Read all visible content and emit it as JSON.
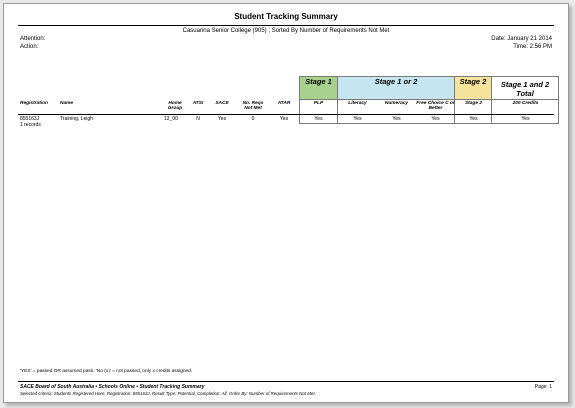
{
  "report": {
    "title": "Student Tracking Summary",
    "subtitle": "Casuarina Senior College (905) ; Sorted By Number of Requirements Not Met",
    "attention_label": "Attention:",
    "action_label": "Action:",
    "date": "Date: January 21 2014",
    "time": "Time: 2:56 PM"
  },
  "groups": {
    "stage1": "Stage 1",
    "stage1or2": "Stage 1 or 2",
    "stage2": "Stage 2",
    "total": "Stage 1 and 2 Total"
  },
  "group_colors": {
    "stage1": "#a9d18e",
    "stage1or2": "#c5e6f0",
    "stage2": "#f6e39b"
  },
  "columns": {
    "registration": "Registration",
    "name": "Name",
    "home_group": "Home Group",
    "atsi": "ATSI",
    "sace": "SACE",
    "no_reqs": "No. Reqs Not Met",
    "atar": "ATAR",
    "plp": "PLP",
    "literacy": "Literacy",
    "numeracy": "Numeracy",
    "free_choice": "Free Choice C or Better",
    "stage2": "Stage 2",
    "credits": "200 Credits"
  },
  "rows": [
    {
      "registration": "855163J",
      "name": "Training, Leigh",
      "home_group": "12_00",
      "atsi": "N",
      "sace": "Yes",
      "no_reqs": "0",
      "atar": "Yes",
      "plp": "Yes",
      "literacy": "Yes",
      "numeracy": "Yes",
      "free_choice": "Yes",
      "stage2": "Yes",
      "credits": "Yes"
    }
  ],
  "records": "1 records",
  "footnote": "'YES' = passed OR assumed pass. 'No (x)' = not passed, only x credits assigned.",
  "footer": {
    "line1": "SACE Board of South Australia • Schools Online • Student Tracking Summary",
    "line2": "Selected criteria: Students Registered Here, Registration: 855163J, Result Type: Potential, Completion: All, Order By: Number of Requirements Not Met.",
    "page": "Page: 1"
  }
}
